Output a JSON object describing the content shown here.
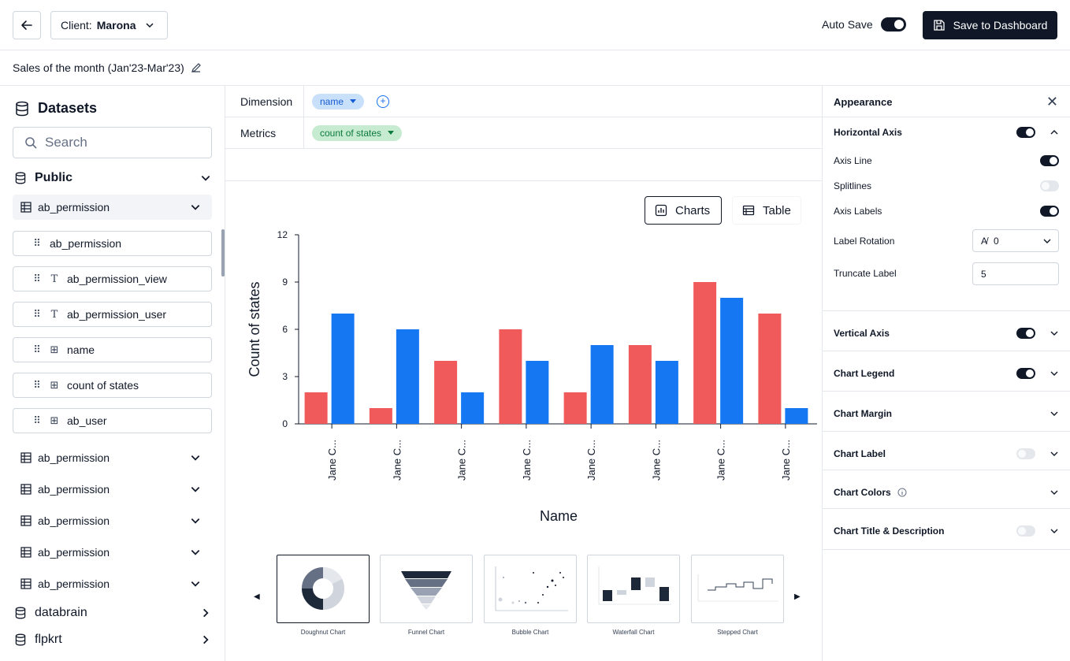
{
  "topbar": {
    "client_label": "Client:",
    "client_value": "Marona",
    "autosave_label": "Auto Save",
    "save_button": "Save to Dashboard"
  },
  "page_title": "Sales of the month (Jan'23-Mar'23)",
  "sidebar": {
    "heading": "Datasets",
    "search_placeholder": "Search",
    "groups": [
      {
        "label": "Public"
      },
      {
        "label": "databrain"
      },
      {
        "label": "flpkrt"
      }
    ],
    "active_table": "ab_permission",
    "fields": [
      {
        "label": "ab_permission",
        "icon": "drag-only"
      },
      {
        "label": "ab_permission_view",
        "icon": "text-type-icon"
      },
      {
        "label": "ab_permission_user",
        "icon": "text-type-icon"
      },
      {
        "label": "name",
        "icon": "table-type-icon"
      },
      {
        "label": "count of states",
        "icon": "table-type-icon"
      },
      {
        "label": "ab_user",
        "icon": "table-type-icon"
      }
    ],
    "other_tables": [
      "ab_permission",
      "ab_permission",
      "ab_permission",
      "ab_permission",
      "ab_permission"
    ]
  },
  "config": {
    "dimension_label": "Dimension",
    "dimension_pill": "name",
    "metrics_label": "Metrics",
    "metrics_pill": "count of states"
  },
  "view_toggle": {
    "charts": "Charts",
    "table": "Table"
  },
  "chart_data": {
    "type": "bar",
    "xlabel": "Name",
    "ylabel": "Count of states",
    "ylim": [
      0,
      12
    ],
    "yticks": [
      0,
      3,
      6,
      9,
      12
    ],
    "categories": [
      "Jane C...",
      "Jane C...",
      "Jane C...",
      "Jane C...",
      "Jane C...",
      "Jane C...",
      "Jane C...",
      "Jane C..."
    ],
    "series": [
      {
        "color": "#f05a5a",
        "values": [
          2,
          1,
          4,
          6,
          2,
          5,
          9,
          7
        ]
      },
      {
        "color": "#1677f2",
        "values": [
          7,
          6,
          2,
          4,
          5,
          4,
          8,
          1
        ]
      }
    ],
    "grid": false
  },
  "chart_types": [
    {
      "label": "Doughnut Chart",
      "selected": true
    },
    {
      "label": "Funnel Chart",
      "selected": false
    },
    {
      "label": "Bubble Chart",
      "selected": false
    },
    {
      "label": "Waterfall Chart",
      "selected": false
    },
    {
      "label": "Stepped Chart",
      "selected": false
    }
  ],
  "appearance": {
    "title": "Appearance",
    "horizontal_axis": "Horizontal Axis",
    "axis_line": "Axis Line",
    "splitlines": "Splitlines",
    "axis_labels": "Axis Labels",
    "label_rotation": "Label Rotation",
    "label_rotation_value": "0",
    "truncate_label": "Truncate Label",
    "truncate_value": "5",
    "vertical_axis": "Vertical Axis",
    "chart_legend": "Chart Legend",
    "chart_margin": "Chart Margin",
    "chart_label": "Chart Label",
    "chart_colors": "Chart Colors",
    "chart_title_desc": "Chart Title & Description"
  }
}
